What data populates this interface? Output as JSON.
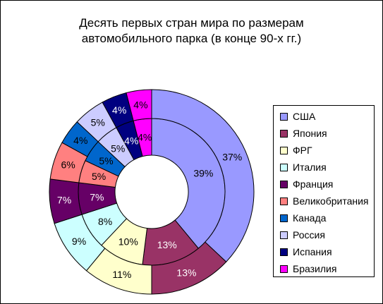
{
  "chart_data": {
    "type": "donut",
    "title": [
      "Десять первых стран мира по размерам",
      "автомобильного парка (в конце 90-х гг.)"
    ],
    "categories": [
      "США",
      "Япония",
      "ФРГ",
      "Италия",
      "Франция",
      "Великобритания",
      "Канада",
      "Россия",
      "Испания",
      "Бразилия"
    ],
    "series": [
      {
        "ring": "inner",
        "values": [
          39,
          13,
          10,
          8,
          7,
          5,
          5,
          5,
          4,
          4
        ],
        "labels": [
          "39%",
          "13%",
          "10%",
          "8%",
          "7%",
          "5%",
          "5%",
          "5%",
          "4%",
          "4%"
        ]
      },
      {
        "ring": "outer",
        "values": [
          37,
          13,
          11,
          9,
          7,
          6,
          4,
          5,
          4,
          4
        ],
        "labels": [
          "37%",
          "13%",
          "11%",
          "9%",
          "7%",
          "6%",
          "4%",
          "5%",
          "4%",
          "4%"
        ]
      }
    ],
    "colors": [
      "#9999ff",
      "#993366",
      "#ffffcc",
      "#ccffff",
      "#660066",
      "#ff8080",
      "#0066cc",
      "#ccccff",
      "#000080",
      "#ff00ff"
    ],
    "label_colors": [
      "#000000",
      "#ffffff",
      "#000000",
      "#000000",
      "#ffffff",
      "#000000",
      "#000000",
      "#000000",
      "#ffffff",
      "#000000"
    ],
    "legend": "right"
  }
}
